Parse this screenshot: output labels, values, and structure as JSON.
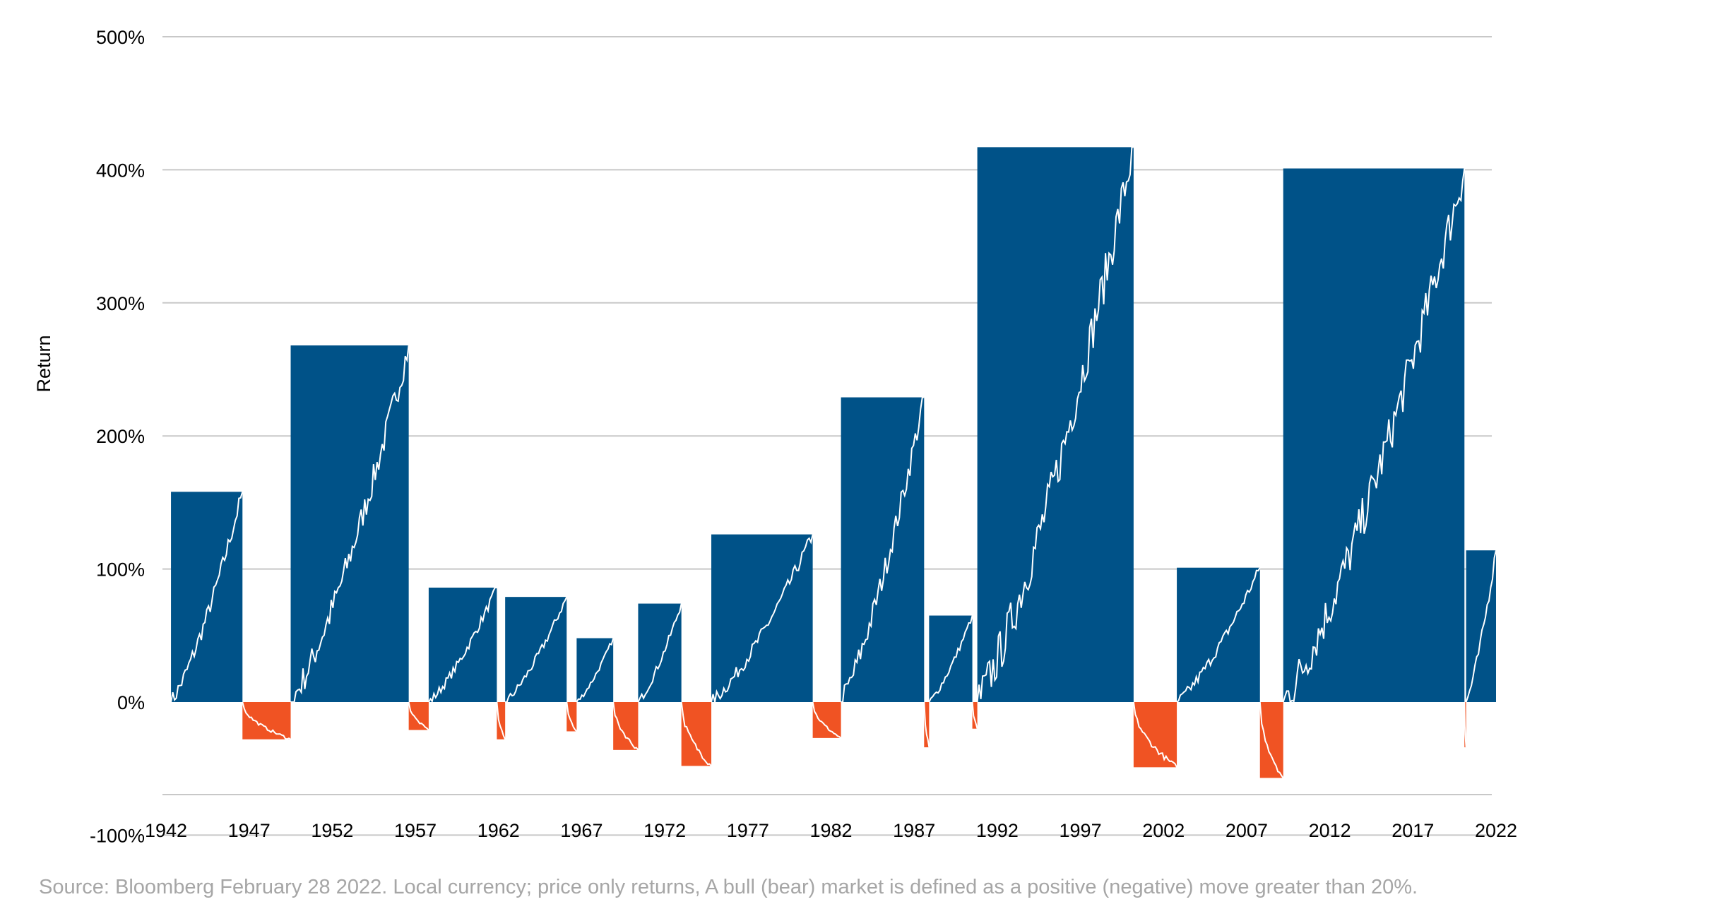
{
  "chart_data": {
    "type": "bar",
    "ylabel": "Return",
    "ylim": [
      -100,
      500
    ],
    "yticks": [
      {
        "value": 500,
        "label": "500%"
      },
      {
        "value": 400,
        "label": "400%"
      },
      {
        "value": 300,
        "label": "300%"
      },
      {
        "value": 200,
        "label": "200%"
      },
      {
        "value": 100,
        "label": "100%"
      },
      {
        "value": 0,
        "label": "0%"
      },
      {
        "value": -100,
        "label": "-100%"
      }
    ],
    "xlim": [
      1942,
      2022
    ],
    "xticks": [
      1942,
      1947,
      1952,
      1957,
      1962,
      1967,
      1972,
      1977,
      1982,
      1987,
      1992,
      1997,
      2002,
      2007,
      2012,
      2017,
      2022
    ],
    "gridlines": true,
    "colors": {
      "bull": "#005288",
      "bear": "#f05323",
      "line": "#ffffff",
      "grid": "#c8c8c8"
    },
    "series": [
      {
        "name": "bull",
        "periods": [
          {
            "start": 1942.3,
            "end": 1946.6,
            "return": 158
          },
          {
            "start": 1949.5,
            "end": 1956.6,
            "return": 268
          },
          {
            "start": 1957.8,
            "end": 1961.9,
            "return": 86
          },
          {
            "start": 1962.4,
            "end": 1966.1,
            "return": 79
          },
          {
            "start": 1966.7,
            "end": 1968.9,
            "return": 48
          },
          {
            "start": 1970.4,
            "end": 1973.0,
            "return": 74
          },
          {
            "start": 1974.8,
            "end": 1980.9,
            "return": 126
          },
          {
            "start": 1982.6,
            "end": 1987.6,
            "return": 229
          },
          {
            "start": 1987.9,
            "end": 1990.5,
            "return": 65
          },
          {
            "start": 1990.8,
            "end": 2000.2,
            "return": 417
          },
          {
            "start": 2002.8,
            "end": 2007.8,
            "return": 101
          },
          {
            "start": 2009.2,
            "end": 2020.1,
            "return": 401
          },
          {
            "start": 2020.2,
            "end": 2022.0,
            "return": 114
          }
        ]
      },
      {
        "name": "bear",
        "periods": [
          {
            "start": 1946.6,
            "end": 1949.5,
            "return": -28
          },
          {
            "start": 1956.6,
            "end": 1957.8,
            "return": -21
          },
          {
            "start": 1961.9,
            "end": 1962.4,
            "return": -28
          },
          {
            "start": 1966.1,
            "end": 1966.7,
            "return": -22
          },
          {
            "start": 1968.9,
            "end": 1970.4,
            "return": -36
          },
          {
            "start": 1973.0,
            "end": 1974.8,
            "return": -48
          },
          {
            "start": 1980.9,
            "end": 1982.6,
            "return": -27
          },
          {
            "start": 1987.6,
            "end": 1987.9,
            "return": -34
          },
          {
            "start": 1990.5,
            "end": 1990.8,
            "return": -20
          },
          {
            "start": 2000.2,
            "end": 2002.8,
            "return": -49
          },
          {
            "start": 2007.8,
            "end": 2009.2,
            "return": -57
          },
          {
            "start": 2020.1,
            "end": 2020.2,
            "return": -34
          }
        ]
      }
    ]
  },
  "footer": {
    "source": "Source: Bloomberg February 28 2022. Local currency; price only returns, A bull (bear) market is defined as a positive (negative) move greater than 20%."
  }
}
